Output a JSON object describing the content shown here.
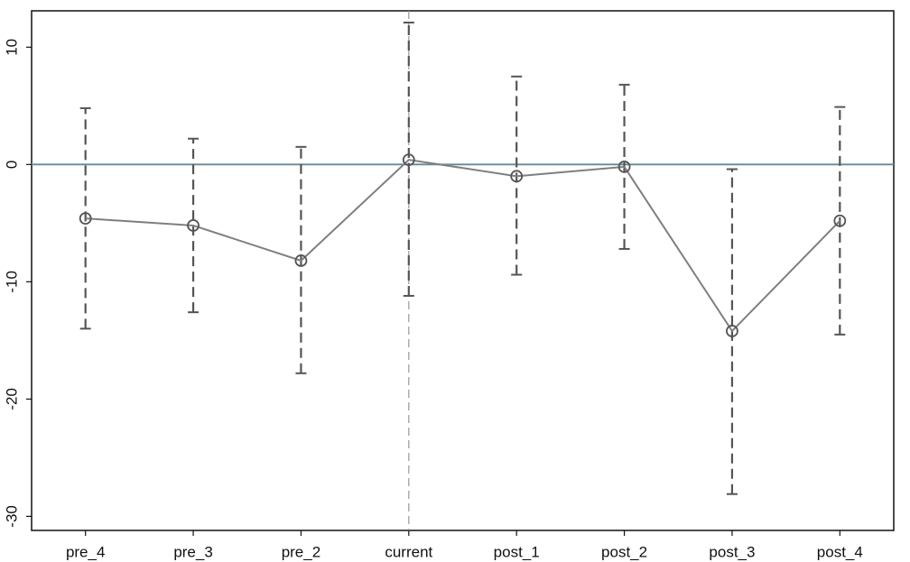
{
  "chart_data": {
    "type": "errorbar-line",
    "categories": [
      "pre_4",
      "pre_3",
      "pre_2",
      "current",
      "post_1",
      "post_2",
      "post_3",
      "post_4"
    ],
    "series": [
      {
        "color": "#7f7f7f",
        "values": [
          -4.6,
          -5.2,
          -8.2,
          0.4,
          -1.0,
          -0.2,
          -14.2,
          -4.8
        ],
        "lower": [
          -14.0,
          -12.6,
          -17.8,
          -11.2,
          -9.4,
          -7.2,
          -28.1,
          -14.5
        ],
        "upper": [
          4.8,
          2.2,
          1.5,
          12.1,
          7.5,
          6.8,
          -0.4,
          4.9
        ]
      }
    ],
    "ylim": [
      -31.2,
      13.1
    ],
    "yticks": [
      -30,
      -20,
      -10,
      0,
      10
    ],
    "hline": 0,
    "hline_color": "#5f8c99",
    "vline": "current"
  }
}
